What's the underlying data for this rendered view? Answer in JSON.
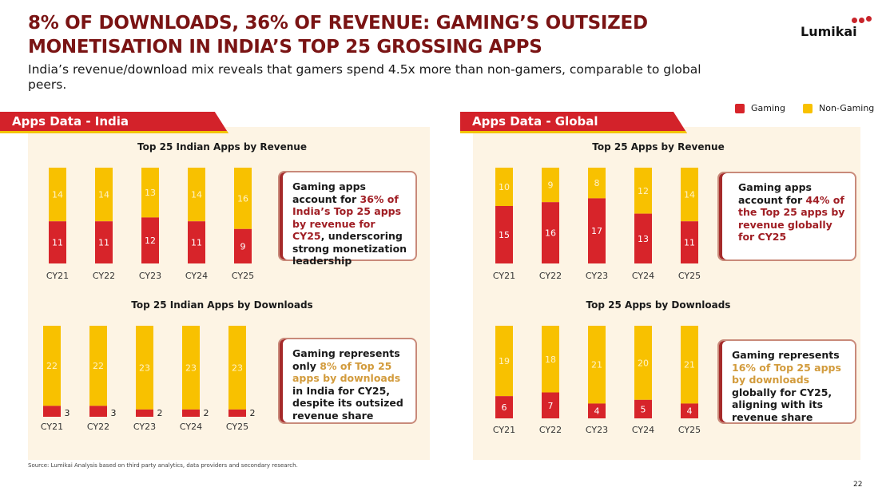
{
  "header": {
    "title_line1": "8% OF DOWNLOADS, 36% OF REVENUE: GAMING’S OUTSIZED",
    "title_line2": "MONETISATION IN INDIA’S TOP 25 GROSSING APPS",
    "subtitle": "India’s revenue/download mix reveals that gamers spend 4.5x more than non-gamers, comparable to global peers.",
    "logo": "Lumikai"
  },
  "legend": [
    {
      "label": "Gaming",
      "color": "#d7242a"
    },
    {
      "label": "Non-Gaming",
      "color": "#f8c100"
    }
  ],
  "sections": {
    "india": "Apps Data - India",
    "global": "Apps Data - Global"
  },
  "chart_data": [
    {
      "type": "bar",
      "stacked": true,
      "title": "Top 25 Indian Apps by Revenue",
      "categories": [
        "CY21",
        "CY22",
        "CY23",
        "CY24",
        "CY25"
      ],
      "series": [
        {
          "name": "Gaming",
          "values": [
            11,
            11,
            12,
            11,
            9
          ]
        },
        {
          "name": "Non-Gaming",
          "values": [
            14,
            14,
            13,
            14,
            16
          ]
        }
      ]
    },
    {
      "type": "bar",
      "stacked": true,
      "title": "Top 25 Indian Apps by Downloads",
      "categories": [
        "CY21",
        "CY22",
        "CY23",
        "CY24",
        "CY25"
      ],
      "series": [
        {
          "name": "Gaming",
          "values": [
            3,
            3,
            2,
            2,
            2
          ]
        },
        {
          "name": "Non-Gaming",
          "values": [
            22,
            22,
            23,
            23,
            23
          ]
        }
      ]
    },
    {
      "type": "bar",
      "stacked": true,
      "title": "Top 25 Apps by Revenue",
      "categories": [
        "CY21",
        "CY22",
        "CY23",
        "CY24",
        "CY25"
      ],
      "series": [
        {
          "name": "Gaming",
          "values": [
            15,
            16,
            17,
            13,
            11
          ]
        },
        {
          "name": "Non-Gaming",
          "values": [
            10,
            9,
            8,
            12,
            14
          ]
        }
      ]
    },
    {
      "type": "bar",
      "stacked": true,
      "title": "Top 25 Apps by Downloads",
      "categories": [
        "CY21",
        "CY22",
        "CY23",
        "CY24",
        "CY25"
      ],
      "series": [
        {
          "name": "Gaming",
          "values": [
            6,
            7,
            4,
            5,
            4
          ]
        },
        {
          "name": "Non-Gaming",
          "values": [
            19,
            18,
            21,
            20,
            21
          ]
        }
      ]
    }
  ],
  "callouts": [
    [
      {
        "t": "Gaming apps account for "
      },
      {
        "t": "36% of India’s Top 25 apps by revenue for CY25",
        "hl": "red"
      },
      {
        "t": ", underscoring strong monetization leadership"
      }
    ],
    [
      {
        "t": "Gaming represents only "
      },
      {
        "t": "8% of Top 25 apps by downloads",
        "hl": "gold"
      },
      {
        "t": " in India for CY25, despite its outsized revenue share"
      }
    ],
    [
      {
        "t": "Gaming apps account for "
      },
      {
        "t": "44% of the Top 25 apps by revenue globally for CY25",
        "hl": "red"
      },
      {
        "t": ""
      }
    ],
    [
      {
        "t": "Gaming represents "
      },
      {
        "t": "16% of Top 25 apps by downloads",
        "hl": "gold"
      },
      {
        "t": " globally for CY25, aligning with its revenue share"
      }
    ]
  ],
  "footer": {
    "source": "Source: Lumikai Analysis based on third party analytics, data providers and secondary research.",
    "page": "22"
  }
}
